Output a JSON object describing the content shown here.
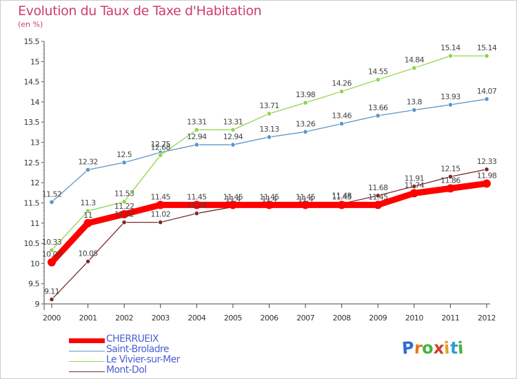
{
  "title": "Evolution du Taux de Taxe d'Habitation",
  "subtitle": "(en %)",
  "logo": {
    "text": "Proxiti",
    "letters": [
      "P",
      "r",
      "o",
      "x",
      "i",
      "t",
      "i"
    ],
    "colors": [
      "#2e6bd6",
      "#e07a1f",
      "#46b23c",
      "#d23b2f",
      "#e0a21f",
      "#2e9bd6",
      "#46b23c"
    ]
  },
  "chart_data": {
    "type": "line",
    "x": [
      "2000",
      "2001",
      "2002",
      "2003",
      "2004",
      "2005",
      "2006",
      "2007",
      "2008",
      "2009",
      "2010",
      "2011",
      "2012"
    ],
    "ylim": [
      9,
      15.5
    ],
    "yticks": [
      "9",
      "9.5",
      "10",
      "10.5",
      "11",
      "11.5",
      "12",
      "12.5",
      "13",
      "13.5",
      "14",
      "14.5",
      "15",
      "15.5"
    ],
    "grid": false,
    "legend_position": "bottom-left",
    "series": [
      {
        "name": "CHERRUEIX",
        "color": "#ff0000",
        "values": [
          10.03,
          11,
          11.22,
          11.45,
          11.45,
          11.45,
          11.45,
          11.45,
          11.45,
          11.45,
          11.74,
          11.86,
          11.98
        ],
        "labels": [
          "10.03",
          "11",
          "11.22",
          "11.45",
          "11.45",
          "11.45",
          "11.45",
          "11.45",
          "11.45",
          "11.45",
          "11.74",
          "11.86",
          "11.98"
        ]
      },
      {
        "name": "Saint-Broladre",
        "color": "#5b94c9",
        "values": [
          11.52,
          12.32,
          12.5,
          12.75,
          12.94,
          12.94,
          13.13,
          13.26,
          13.46,
          13.66,
          13.8,
          13.93,
          14.07
        ],
        "labels": [
          "11.52",
          "12.32",
          "12.5",
          "12.75",
          "12.94",
          "12.94",
          "13.13",
          "13.26",
          "13.46",
          "13.66",
          "13.8",
          "13.93",
          "14.07"
        ]
      },
      {
        "name": "Le Vivier-sur-Mer",
        "color": "#8fd44a",
        "values": [
          10.33,
          11.3,
          11.53,
          12.68,
          13.31,
          13.31,
          13.71,
          13.98,
          14.26,
          14.55,
          14.84,
          15.14,
          15.14
        ],
        "labels": [
          "10.33",
          "11.3",
          "11.53",
          "12.68",
          "13.31",
          "13.31",
          "13.71",
          "13.98",
          "14.26",
          "14.55",
          "14.84",
          "15.14",
          "15.14"
        ]
      },
      {
        "name": "Mont-Dol",
        "color": "#7a2a2a",
        "values": [
          9.11,
          10.05,
          11.02,
          11.02,
          11.24,
          11.4,
          11.4,
          11.4,
          11.48,
          11.68,
          11.91,
          12.15,
          12.33
        ],
        "labels": [
          "9.11",
          "10.05",
          "11.02",
          "11.02",
          "11.24",
          "11.4",
          "11.4",
          "11.4",
          "11.48",
          "11.68",
          "11.91",
          "12.15",
          "12.33"
        ]
      }
    ]
  }
}
